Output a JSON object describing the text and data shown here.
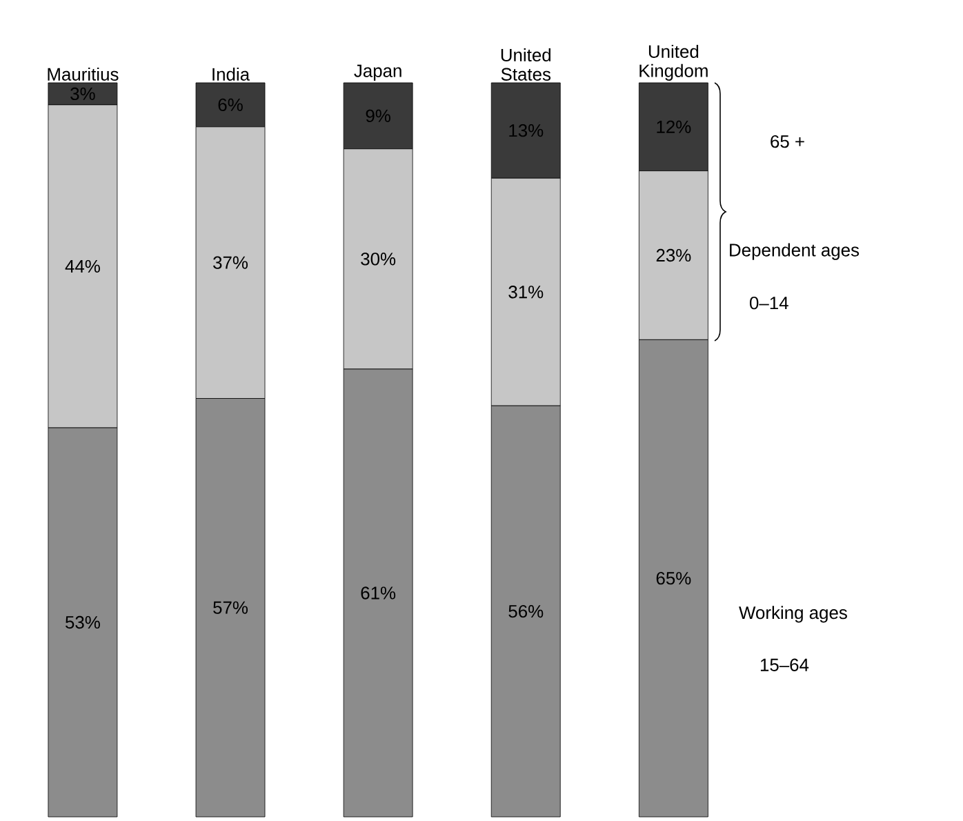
{
  "chart_data": {
    "type": "bar",
    "stacked": true,
    "categories": [
      "Mauritius",
      "India",
      "Japan",
      "United States",
      "United Kingdom"
    ],
    "series": [
      {
        "color": "#8c8c8c",
        "values": [
          53,
          57,
          61,
          56,
          65
        ],
        "value_labels": [
          "53%",
          "57%",
          "61%",
          "56%",
          "65%"
        ]
      },
      {
        "color": "#c6c6c6",
        "values": [
          44,
          37,
          30,
          31,
          23
        ],
        "value_labels": [
          "44%",
          "37%",
          "30%",
          "31%",
          "23%"
        ]
      },
      {
        "color": "#3a3a3a",
        "values": [
          3,
          6,
          9,
          13,
          12
        ],
        "value_labels": [
          "3%",
          "6%",
          "9%",
          "13%",
          "12%"
        ]
      }
    ],
    "annotations": [
      "65 +",
      "Dependent ages",
      "0–14",
      "Working ages",
      "15–64"
    ]
  }
}
